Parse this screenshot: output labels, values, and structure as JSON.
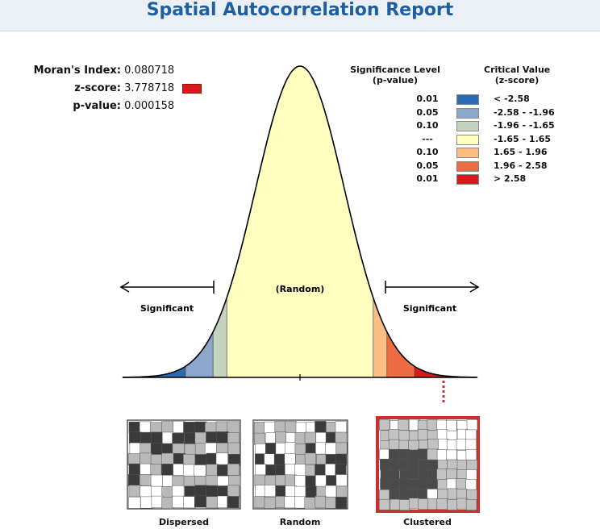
{
  "report": {
    "title": "Spatial Autocorrelation Report"
  },
  "stats": [
    {
      "label": "Moran's Index:",
      "value": "0.080718",
      "swatch": false
    },
    {
      "label": "z-score:",
      "value": "3.778718",
      "swatch": true,
      "swatch_color": "#d7191c"
    },
    {
      "label": "p-value:",
      "value": "0.000158",
      "swatch": false
    }
  ],
  "legend": {
    "p_header_line1": "Significance Level",
    "p_header_line2": "(p-value)",
    "z_header_line1": "Critical Value",
    "z_header_line2": "(z-score)",
    "rows": [
      {
        "p": "0.01",
        "color": "#2c6bb4",
        "z": "< -2.58"
      },
      {
        "p": "0.05",
        "color": "#8ba7cc",
        "z": "-2.58 - -1.96"
      },
      {
        "p": "0.10",
        "color": "#c4d2c0",
        "z": "-1.96 - -1.65"
      },
      {
        "p": "---",
        "color": "#ffffc0",
        "z": "-1.65 - 1.65"
      },
      {
        "p": "0.10",
        "color": "#fbbe85",
        "z": "1.65 - 1.96"
      },
      {
        "p": "0.05",
        "color": "#ef6b41",
        "z": "1.96 - 2.58"
      },
      {
        "p": "0.01",
        "color": "#d7191c",
        "z": "> 2.58"
      }
    ]
  },
  "curve": {
    "random_label": "(Random)",
    "left_label": "Significant",
    "right_label": "Significant"
  },
  "maps": [
    {
      "label": "Dispersed",
      "highlighted": false
    },
    {
      "label": "Random",
      "highlighted": false
    },
    {
      "label": "Clustered",
      "highlighted": true
    }
  ]
}
